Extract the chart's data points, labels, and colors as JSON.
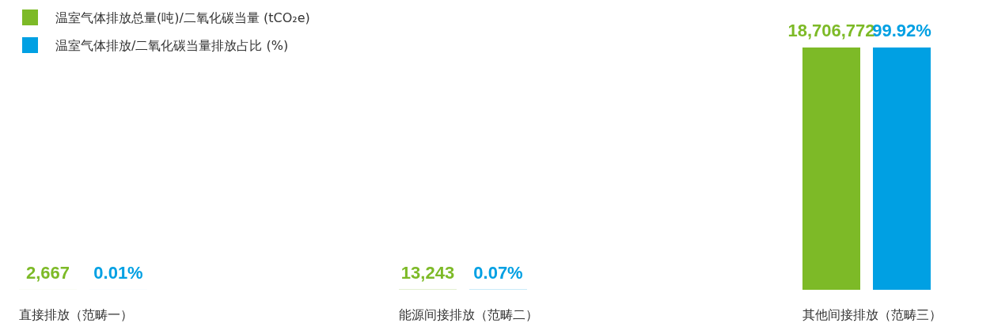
{
  "chart_data": {
    "type": "bar",
    "categories": [
      "直接排放（范畴一）",
      "能源间接排放（范畴二）",
      "其他间接排放（范畴三）"
    ],
    "series": [
      {
        "name": "温室气体排放总量(吨)/二氧化碳当量 (tCO₂e)",
        "color": "#7dba27",
        "values": [
          2667,
          13243,
          18706772
        ],
        "value_labels": [
          "2,667",
          "13,243",
          "18,706,772"
        ]
      },
      {
        "name": "温室气体排放/二氧化碳当量排放占比 (%)",
        "color": "#00a0e3",
        "axis": "y2",
        "values": [
          0.01,
          0.07,
          99.92
        ],
        "value_labels": [
          "0.01%",
          "0.07%",
          "99.92%"
        ]
      }
    ],
    "legend": "top left"
  }
}
